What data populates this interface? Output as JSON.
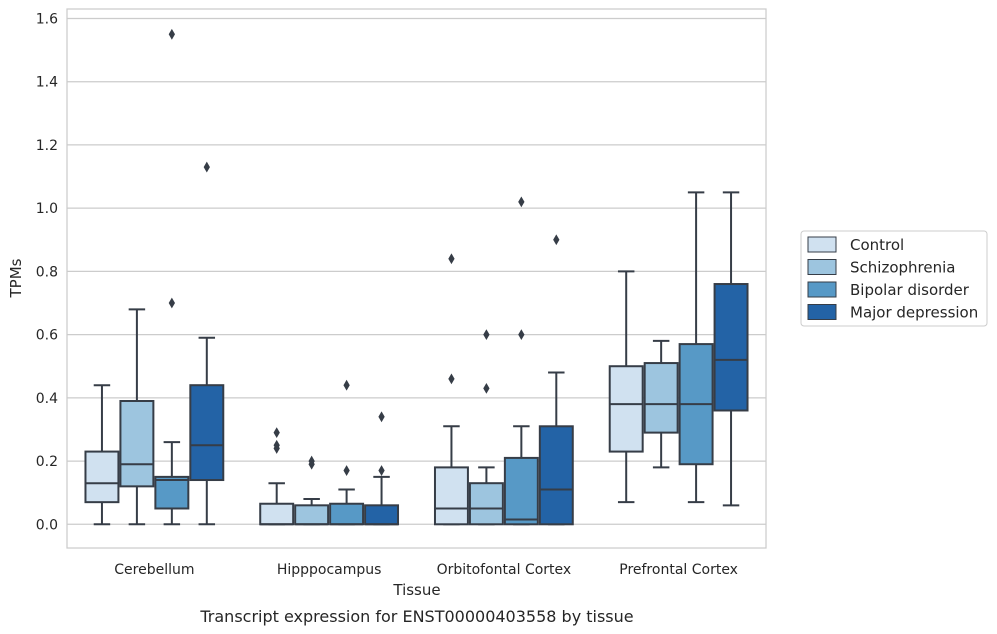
{
  "chart_data": {
    "type": "box",
    "title": "",
    "caption": "Transcript expression for ENST00000403558 by tissue",
    "xlabel": "Tissue",
    "ylabel": "TPMs",
    "ylim": [
      -0.075,
      1.63
    ],
    "yticks": [
      "0.0",
      "0.2",
      "0.4",
      "0.6",
      "0.8",
      "1.0",
      "1.2",
      "1.4",
      "1.6"
    ],
    "ytick_values": [
      0,
      0.2,
      0.4,
      0.6,
      0.8,
      1.0,
      1.2,
      1.4,
      1.6
    ],
    "grid": true,
    "legend_position": "right",
    "categories": [
      "Cerebellum",
      "Hipppocampus",
      "Orbitofontal Cortex",
      "Prefrontal Cortex"
    ],
    "series": [
      {
        "name": "Control",
        "color": "#d0e1f0",
        "boxes": [
          {
            "whislo": 0.0,
            "q1": 0.07,
            "med": 0.13,
            "q3": 0.23,
            "whishi": 0.44,
            "fliers": []
          },
          {
            "whislo": 0.0,
            "q1": 0.0,
            "med": 0.0,
            "q3": 0.065,
            "whishi": 0.13,
            "fliers": [
              0.24,
              0.25,
              0.29
            ]
          },
          {
            "whislo": 0.0,
            "q1": 0.0,
            "med": 0.05,
            "q3": 0.18,
            "whishi": 0.31,
            "fliers": [
              0.46,
              0.84
            ]
          },
          {
            "whislo": 0.07,
            "q1": 0.23,
            "med": 0.38,
            "q3": 0.5,
            "whishi": 0.8,
            "fliers": []
          }
        ]
      },
      {
        "name": "Schizophrenia",
        "color": "#9dc5df",
        "boxes": [
          {
            "whislo": 0.0,
            "q1": 0.12,
            "med": 0.19,
            "q3": 0.39,
            "whishi": 0.68,
            "fliers": []
          },
          {
            "whislo": 0.0,
            "q1": 0.0,
            "med": 0.0,
            "q3": 0.06,
            "whishi": 0.08,
            "fliers": [
              0.19,
              0.2
            ]
          },
          {
            "whislo": 0.0,
            "q1": 0.0,
            "med": 0.05,
            "q3": 0.13,
            "whishi": 0.18,
            "fliers": [
              0.43,
              0.6
            ]
          },
          {
            "whislo": 0.18,
            "q1": 0.29,
            "med": 0.38,
            "q3": 0.51,
            "whishi": 0.58,
            "fliers": []
          }
        ]
      },
      {
        "name": "Bipolar disorder",
        "color": "#5799c6",
        "boxes": [
          {
            "whislo": 0.0,
            "q1": 0.05,
            "med": 0.14,
            "q3": 0.15,
            "whishi": 0.26,
            "fliers": [
              0.7,
              1.55
            ]
          },
          {
            "whislo": 0.0,
            "q1": 0.0,
            "med": 0.0,
            "q3": 0.065,
            "whishi": 0.11,
            "fliers": [
              0.17,
              0.44
            ]
          },
          {
            "whislo": 0.0,
            "q1": 0.0,
            "med": 0.015,
            "q3": 0.21,
            "whishi": 0.31,
            "fliers": [
              0.6,
              1.02
            ]
          },
          {
            "whislo": 0.07,
            "q1": 0.19,
            "med": 0.38,
            "q3": 0.57,
            "whishi": 1.05,
            "fliers": []
          }
        ]
      },
      {
        "name": "Major depression",
        "color": "#2363a6",
        "boxes": [
          {
            "whislo": 0.0,
            "q1": 0.14,
            "med": 0.25,
            "q3": 0.44,
            "whishi": 0.59,
            "fliers": [
              1.13
            ]
          },
          {
            "whislo": 0.0,
            "q1": 0.0,
            "med": 0.0,
            "q3": 0.06,
            "whishi": 0.15,
            "fliers": [
              0.17,
              0.34
            ]
          },
          {
            "whislo": 0.0,
            "q1": 0.0,
            "med": 0.11,
            "q3": 0.31,
            "whishi": 0.48,
            "fliers": [
              0.9
            ]
          },
          {
            "whislo": 0.06,
            "q1": 0.36,
            "med": 0.52,
            "q3": 0.76,
            "whishi": 1.05,
            "fliers": []
          }
        ]
      }
    ]
  }
}
